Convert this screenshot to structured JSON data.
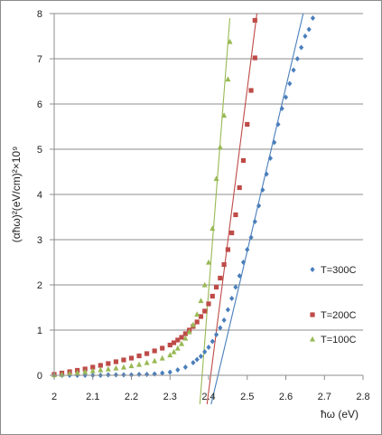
{
  "chart_data": {
    "type": "scatter",
    "title": "",
    "xlabel": "ħω (eV)",
    "ylabel": "(αħω)²(eV/cm)²×10⁹",
    "xlim": [
      2.0,
      2.8
    ],
    "ylim": [
      0,
      8
    ],
    "xticks": [
      "2",
      "2.1",
      "2.2",
      "2.3",
      "2.4",
      "2.5",
      "2.6",
      "2.7",
      "2.8"
    ],
    "yticks": [
      "0",
      "1",
      "2",
      "3",
      "4",
      "5",
      "6",
      "7",
      "8"
    ],
    "grid": "horizontal",
    "legend_position": "right",
    "series": [
      {
        "name": "T=300C",
        "color": "#4a7ebb",
        "marker": "diamond",
        "x": [
          2.0,
          2.02,
          2.04,
          2.06,
          2.08,
          2.1,
          2.12,
          2.14,
          2.16,
          2.18,
          2.2,
          2.22,
          2.24,
          2.26,
          2.28,
          2.3,
          2.32,
          2.34,
          2.36,
          2.37,
          2.38,
          2.39,
          2.4,
          2.41,
          2.42,
          2.43,
          2.44,
          2.45,
          2.46,
          2.47,
          2.48,
          2.49,
          2.5,
          2.51,
          2.52,
          2.53,
          2.54,
          2.55,
          2.56,
          2.57,
          2.58,
          2.59,
          2.6,
          2.61,
          2.62,
          2.63,
          2.64,
          2.65,
          2.66,
          2.67
        ],
        "y": [
          0.0,
          0.0,
          0.0,
          0.0,
          0.0,
          0.0,
          0.0,
          0.01,
          0.01,
          0.01,
          0.01,
          0.02,
          0.02,
          0.03,
          0.05,
          0.07,
          0.12,
          0.18,
          0.28,
          0.35,
          0.42,
          0.52,
          0.62,
          0.75,
          0.9,
          1.05,
          1.22,
          1.45,
          1.7,
          1.95,
          2.2,
          2.5,
          2.78,
          3.05,
          3.4,
          3.75,
          4.1,
          4.45,
          4.8,
          5.15,
          5.55,
          5.9,
          6.15,
          6.45,
          6.75,
          7.0,
          7.25,
          7.5,
          7.65,
          7.9
        ]
      },
      {
        "name": "T=200C",
        "color": "#be4b48",
        "marker": "square",
        "x": [
          2.0,
          2.02,
          2.04,
          2.06,
          2.08,
          2.1,
          2.12,
          2.14,
          2.16,
          2.18,
          2.2,
          2.22,
          2.24,
          2.26,
          2.28,
          2.3,
          2.31,
          2.32,
          2.33,
          2.34,
          2.35,
          2.36,
          2.37,
          2.38,
          2.39,
          2.4,
          2.41,
          2.42,
          2.43,
          2.44,
          2.45,
          2.46,
          2.47,
          2.48,
          2.49,
          2.5,
          2.51,
          2.52
        ],
        "y": [
          0.02,
          0.05,
          0.08,
          0.11,
          0.14,
          0.18,
          0.22,
          0.26,
          0.3,
          0.34,
          0.38,
          0.43,
          0.48,
          0.54,
          0.6,
          0.67,
          0.72,
          0.78,
          0.84,
          0.92,
          1.0,
          1.08,
          1.18,
          1.3,
          1.42,
          1.58,
          1.75,
          1.95,
          2.15,
          2.45,
          2.78,
          3.15,
          3.55,
          4.15,
          4.75,
          5.55,
          6.3,
          7.02
        ]
      },
      {
        "name": "T=100C",
        "color": "#98b954",
        "marker": "triangle",
        "x": [
          2.0,
          2.02,
          2.04,
          2.06,
          2.08,
          2.1,
          2.12,
          2.14,
          2.16,
          2.18,
          2.2,
          2.22,
          2.24,
          2.26,
          2.28,
          2.3,
          2.31,
          2.32,
          2.33,
          2.34,
          2.35,
          2.36,
          2.37,
          2.38,
          2.39,
          2.4,
          2.41,
          2.42,
          2.43,
          2.44,
          2.45
        ],
        "y": [
          0.01,
          0.02,
          0.04,
          0.06,
          0.08,
          0.1,
          0.12,
          0.14,
          0.16,
          0.18,
          0.21,
          0.24,
          0.28,
          0.32,
          0.38,
          0.45,
          0.52,
          0.6,
          0.7,
          0.82,
          0.96,
          1.12,
          1.35,
          1.65,
          2.0,
          2.5,
          3.25,
          4.35,
          5.05,
          5.75,
          6.55
        ]
      }
    ],
    "fit_lines": [
      {
        "series": "T=300C",
        "color": "#4a7ebb",
        "x": [
          2.405,
          2.645
        ],
        "y": [
          -0.7,
          8.0
        ]
      },
      {
        "series": "T=200C",
        "color": "#be4b48",
        "x": [
          2.395,
          2.525
        ],
        "y": [
          -0.7,
          8.0
        ]
      },
      {
        "series": "T=100C",
        "color": "#98b954",
        "x": [
          2.375,
          2.455
        ],
        "y": [
          -0.9,
          7.9
        ]
      }
    ],
    "extra_points": [
      {
        "series": "T=100C",
        "x": 2.455,
        "y": 7.38
      },
      {
        "series": "T=200C",
        "x": 2.52,
        "y": 7.85
      }
    ]
  }
}
